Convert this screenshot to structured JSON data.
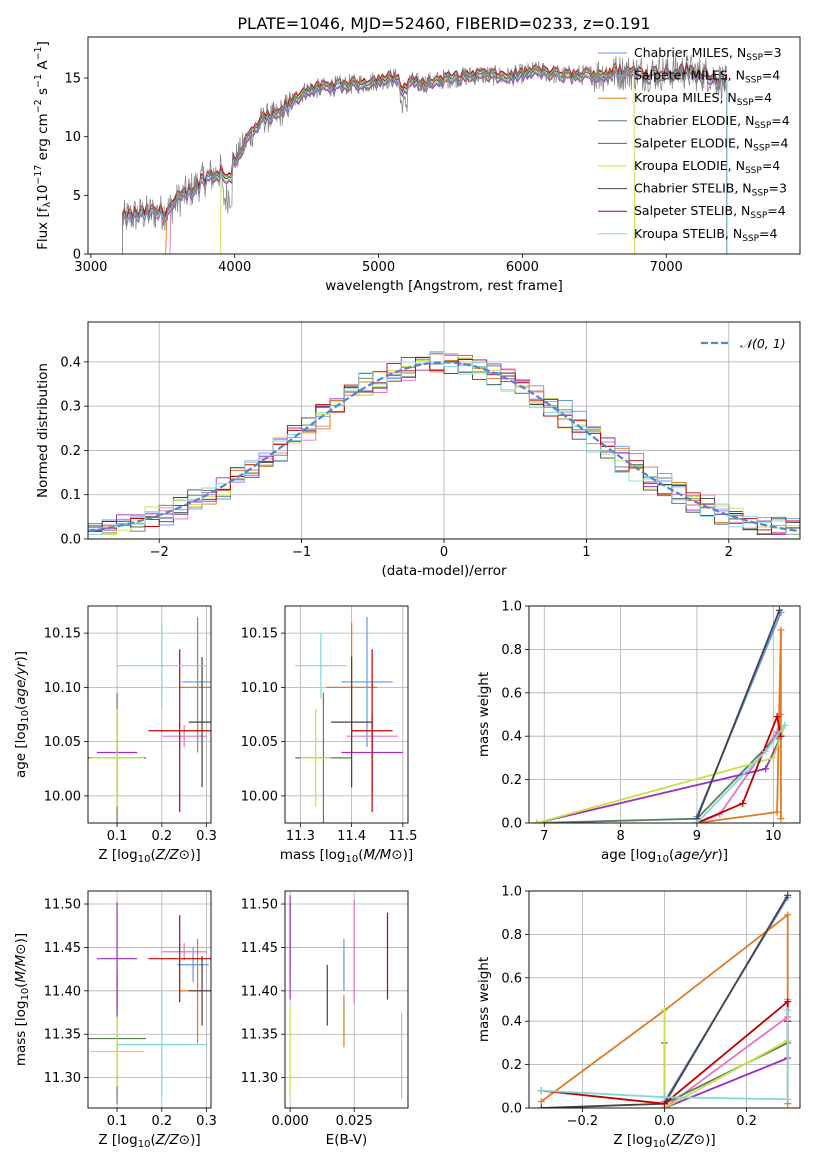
{
  "figure": {
    "title": "PLATE=1046, MJD=52460, FIBERID=0233, z=0.191"
  },
  "colors": {
    "Chabrier MILES": "#6495ed",
    "Salpeter MILES": "#e377c2",
    "Kroupa MILES": "#e07b1f",
    "Chabrier ELODIE": "#5a7d5a",
    "Salpeter ELODIE": "#9b30c0",
    "Kroupa ELODIE": "#c8e04a",
    "Chabrier STELIB": "#444444",
    "Salpeter STELIB": "#c00000",
    "Kroupa STELIB": "#7fd8df",
    "data": "#808080",
    "normal": "#4f86d0"
  },
  "legend1": [
    {
      "model": "Chabrier MILES",
      "n": "3"
    },
    {
      "model": "Salpeter MILES",
      "n": "4"
    },
    {
      "model": "Kroupa MILES",
      "n": "4"
    },
    {
      "model": "Chabrier ELODIE",
      "n": "4"
    },
    {
      "model": "Salpeter ELODIE",
      "n": "4"
    },
    {
      "model": "Kroupa ELODIE",
      "n": "4"
    },
    {
      "model": "Chabrier STELIB",
      "n": "3"
    },
    {
      "model": "Salpeter STELIB",
      "n": "4"
    },
    {
      "model": "Kroupa STELIB",
      "n": "4"
    }
  ],
  "chart_data": [
    {
      "id": "spectrum",
      "type": "line",
      "title": "PLATE=1046, MJD=52460, FIBERID=0233, z=0.191",
      "xlabel": "wavelength [Angstrom, rest frame]",
      "ylabel": "Flux [f_λ 10^-17 erg cm^-2 s^-1 A^-1]",
      "xlim": [
        2980,
        7930
      ],
      "ylim": [
        0,
        18.5
      ],
      "xticks": [
        3000,
        4000,
        5000,
        6000,
        7000
      ],
      "yticks": [
        0,
        5,
        10,
        15
      ],
      "legend_position": "right",
      "data_wavelength_range": [
        3220,
        7420
      ],
      "continuum": {
        "wavelength": [
          3220,
          3300,
          3400,
          3520,
          3600,
          3700,
          3800,
          3900,
          4000,
          4100,
          4200,
          4300,
          4400,
          4500,
          4700,
          4900,
          5100,
          5300,
          5500,
          5700,
          5900,
          6100,
          6300,
          6500,
          6700,
          6900,
          7100,
          7300,
          7420
        ],
        "flux": [
          3.0,
          3.3,
          3.5,
          3.6,
          4.5,
          5.5,
          6.5,
          7.0,
          8.0,
          10.0,
          11.5,
          11.8,
          13.0,
          14.0,
          14.3,
          14.6,
          15.0,
          14.5,
          15.0,
          15.3,
          15.1,
          15.6,
          15.2,
          15.3,
          15.5,
          15.4,
          15.6,
          15.3,
          14.5
        ]
      }
    },
    {
      "id": "residuals",
      "type": "histogram",
      "xlabel": "(data-model)/error",
      "ylabel": "Normed distribution",
      "xlim": [
        -2.5,
        2.5
      ],
      "ylim": [
        0,
        0.49
      ],
      "xticks": [
        -2,
        -1,
        0,
        1,
        2
      ],
      "yticks": [
        0.0,
        0.1,
        0.2,
        0.3,
        0.4
      ],
      "grid": true,
      "legend_position": "top-right",
      "reference_curve": {
        "label": "𝒩(0, 1)",
        "mean": 0,
        "sigma": 1
      },
      "bin_width": 0.1
    },
    {
      "id": "age_vs_Z",
      "type": "errorbar",
      "xlabel": "Z [log10(Z/Z⊙)]",
      "ylabel": "age  [log10(age/yr)]",
      "xlim": [
        0.035,
        0.31
      ],
      "ylim": [
        9.975,
        10.175
      ],
      "xticks": [
        0.1,
        0.2,
        0.3
      ],
      "yticks": [
        10.0,
        10.05,
        10.1,
        10.15
      ],
      "grid": true,
      "points": [
        {
          "model": "Chabrier MILES",
          "x": 0.28,
          "y": 10.105,
          "xerr": 0.035,
          "yerr": 0.06
        },
        {
          "model": "Salpeter MILES",
          "x": 0.25,
          "y": 10.055,
          "xerr": 0.05,
          "yerr": 0.01
        },
        {
          "model": "Kroupa MILES",
          "x": 0.28,
          "y": 10.1,
          "xerr": 0.04,
          "yerr": 0.06
        },
        {
          "model": "Chabrier ELODIE",
          "x": 0.1,
          "y": 10.035,
          "xerr": 0.065,
          "yerr": 0.06
        },
        {
          "model": "Salpeter ELODIE",
          "x": 0.1,
          "y": 10.04,
          "xerr": 0.045,
          "yerr": 0.035
        },
        {
          "model": "Kroupa ELODIE",
          "x": 0.1,
          "y": 10.035,
          "xerr": 0.06,
          "yerr": 0.045
        },
        {
          "model": "Chabrier STELIB",
          "x": 0.29,
          "y": 10.068,
          "xerr": 0.03,
          "yerr": 0.06
        },
        {
          "model": "Salpeter STELIB",
          "x": 0.24,
          "y": 10.06,
          "xerr": 0.07,
          "yerr": 0.075
        },
        {
          "model": "Kroupa STELIB",
          "x": 0.2,
          "y": 10.12,
          "xerr": 0.1,
          "yerr": 0.04
        }
      ]
    },
    {
      "id": "age_vs_mass",
      "type": "errorbar",
      "xlabel": "mass [log10(M/M⊙)]",
      "ylabel": "",
      "xlim": [
        11.27,
        11.51
      ],
      "ylim": [
        9.975,
        10.175
      ],
      "xticks": [
        11.3,
        11.4,
        11.5
      ],
      "yticks": [
        10.0,
        10.05,
        10.1,
        10.15
      ],
      "grid": true,
      "points": [
        {
          "model": "Chabrier MILES",
          "x": 11.43,
          "y": 10.105,
          "xerr": 0.05,
          "yerr": 0.06
        },
        {
          "model": "Salpeter MILES",
          "x": 11.44,
          "y": 10.055,
          "xerr": 0.05,
          "yerr": 0.01
        },
        {
          "model": "Kroupa MILES",
          "x": 11.4,
          "y": 10.1,
          "xerr": 0.05,
          "yerr": 0.06
        },
        {
          "model": "Chabrier ELODIE",
          "x": 11.345,
          "y": 10.035,
          "xerr": 0.055,
          "yerr": 0.06
        },
        {
          "model": "Salpeter ELODIE",
          "x": 11.44,
          "y": 10.04,
          "xerr": 0.06,
          "yerr": 0.035
        },
        {
          "model": "Kroupa ELODIE",
          "x": 11.33,
          "y": 10.035,
          "xerr": 0.03,
          "yerr": 0.045
        },
        {
          "model": "Chabrier STELIB",
          "x": 11.4,
          "y": 10.068,
          "xerr": 0.04,
          "yerr": 0.06
        },
        {
          "model": "Salpeter STELIB",
          "x": 11.44,
          "y": 10.06,
          "xerr": 0.04,
          "yerr": 0.075
        },
        {
          "model": "Kroupa STELIB",
          "x": 11.34,
          "y": 10.12,
          "xerr": 0.05,
          "yerr": 0.03
        }
      ]
    },
    {
      "id": "weight_vs_age",
      "type": "line",
      "xlabel": "age  [log10(age/yr)]",
      "ylabel": "mass weight",
      "xlim": [
        6.8,
        10.35
      ],
      "ylim": [
        0,
        1.0
      ],
      "xticks": [
        7,
        8,
        9,
        10
      ],
      "yticks": [
        0.0,
        0.2,
        0.4,
        0.6,
        0.8,
        1.0
      ],
      "grid": true,
      "series": [
        {
          "model": "Chabrier MILES",
          "x": [
            9.0,
            10.1
          ],
          "y": [
            0.03,
            0.97
          ]
        },
        {
          "model": "Salpeter MILES",
          "x": [
            9.0,
            9.3,
            10.05,
            10.1
          ],
          "y": [
            0.0,
            0.04,
            0.42,
            0.5
          ]
        },
        {
          "model": "Kroupa MILES",
          "x": [
            9.0,
            10.05,
            10.1,
            10.1
          ],
          "y": [
            0.0,
            0.05,
            0.89,
            0.02
          ]
        },
        {
          "model": "Chabrier ELODIE",
          "x": [
            6.9,
            9.0,
            10.05
          ],
          "y": [
            0.0,
            0.02,
            0.4
          ]
        },
        {
          "model": "Salpeter ELODIE",
          "x": [
            6.9,
            9.9,
            10.1
          ],
          "y": [
            0.0,
            0.25,
            0.4
          ]
        },
        {
          "model": "Kroupa ELODIE",
          "x": [
            6.9,
            10.0,
            10.15
          ],
          "y": [
            0.0,
            0.3,
            0.45
          ]
        },
        {
          "model": "Chabrier STELIB",
          "x": [
            9.0,
            10.08
          ],
          "y": [
            0.02,
            0.98
          ]
        },
        {
          "model": "Salpeter STELIB",
          "x": [
            9.0,
            9.6,
            10.05,
            10.1
          ],
          "y": [
            0.0,
            0.09,
            0.49,
            0.4
          ]
        },
        {
          "model": "Kroupa STELIB",
          "x": [
            9.0,
            9.9,
            10.15
          ],
          "y": [
            0.0,
            0.33,
            0.45
          ]
        }
      ]
    },
    {
      "id": "mass_vs_Z",
      "type": "errorbar",
      "xlabel": "Z [log10(Z/Z⊙)]",
      "ylabel": "mass [log10(M/M⊙)]",
      "xlim": [
        0.035,
        0.31
      ],
      "ylim": [
        11.265,
        11.515
      ],
      "xticks": [
        0.1,
        0.2,
        0.3
      ],
      "yticks": [
        11.3,
        11.35,
        11.4,
        11.45,
        11.5
      ],
      "grid": true,
      "points": [
        {
          "model": "Chabrier MILES",
          "x": 0.27,
          "y": 11.43,
          "xerr": 0.035,
          "yerr": 0.02
        },
        {
          "model": "Salpeter MILES",
          "x": 0.25,
          "y": 11.445,
          "xerr": 0.05,
          "yerr": 0.01
        },
        {
          "model": "Kroupa MILES",
          "x": 0.28,
          "y": 11.4,
          "xerr": 0.04,
          "yerr": 0.06
        },
        {
          "model": "Chabrier ELODIE",
          "x": 0.1,
          "y": 11.345,
          "xerr": 0.065,
          "yerr": 0.075
        },
        {
          "model": "Salpeter ELODIE",
          "x": 0.1,
          "y": 11.437,
          "xerr": 0.045,
          "yerr": 0.065
        },
        {
          "model": "Kroupa ELODIE",
          "x": 0.1,
          "y": 11.33,
          "xerr": 0.06,
          "yerr": 0.04
        },
        {
          "model": "Chabrier STELIB",
          "x": 0.29,
          "y": 11.4,
          "xerr": 0.03,
          "yerr": 0.04
        },
        {
          "model": "Salpeter STELIB",
          "x": 0.24,
          "y": 11.437,
          "xerr": 0.07,
          "yerr": 0.05
        },
        {
          "model": "Kroupa STELIB",
          "x": 0.2,
          "y": 11.338,
          "xerr": 0.1,
          "yerr": 0.06
        }
      ]
    },
    {
      "id": "mass_vs_EBV",
      "type": "errorbar",
      "xlabel": "E(B-V)",
      "ylabel": "",
      "xlim": [
        -0.002,
        0.046
      ],
      "ylim": [
        11.265,
        11.515
      ],
      "xticks": [
        0.0,
        0.025
      ],
      "yticks": [
        11.3,
        11.35,
        11.4,
        11.45,
        11.5
      ],
      "grid": true,
      "points": [
        {
          "model": "Chabrier MILES",
          "x": 0.021,
          "y": 11.43,
          "yerr": 0.03
        },
        {
          "model": "Salpeter MILES",
          "x": 0.025,
          "y": 11.445,
          "yerr": 0.06
        },
        {
          "model": "Kroupa MILES",
          "x": 0.021,
          "y": 11.365,
          "yerr": 0.03
        },
        {
          "model": "Chabrier ELODIE",
          "x": 0.0,
          "y": 11.46,
          "yerr": 0.04
        },
        {
          "model": "Salpeter ELODIE",
          "x": 0.0,
          "y": 11.45,
          "yerr": 0.06
        },
        {
          "model": "Kroupa ELODIE",
          "x": 0.0,
          "y": 11.33,
          "yerr": 0.05
        },
        {
          "model": "Chabrier STELIB",
          "x": 0.0145,
          "y": 11.395,
          "yerr": 0.035
        },
        {
          "model": "Salpeter STELIB",
          "x": 0.038,
          "y": 11.44,
          "yerr": 0.05
        },
        {
          "model": "Kroupa STELIB",
          "x": 0.0435,
          "y": 11.325,
          "yerr": 0.05
        }
      ]
    },
    {
      "id": "weight_vs_Z",
      "type": "line",
      "xlabel": "Z [log10(Z/Z⊙)]",
      "ylabel": "mass weight",
      "xlim": [
        -0.33,
        0.33
      ],
      "ylim": [
        0,
        1.0
      ],
      "xticks": [
        -0.2,
        0.0,
        0.2
      ],
      "yticks": [
        0.0,
        0.2,
        0.4,
        0.6,
        0.8,
        1.0
      ],
      "grid": true,
      "series": [
        {
          "model": "Chabrier MILES",
          "x": [
            0.0,
            0.3
          ],
          "y": [
            0.03,
            0.97
          ]
        },
        {
          "model": "Salpeter MILES",
          "x": [
            0.0,
            0.3,
            0.3
          ],
          "y": [
            0.0,
            0.42,
            0.5
          ]
        },
        {
          "model": "Kroupa MILES",
          "x": [
            -0.3,
            0.0,
            0.3,
            0.3
          ],
          "y": [
            0.03,
            0.45,
            0.89,
            0.02
          ]
        },
        {
          "model": "Chabrier ELODIE",
          "x": [
            0.0,
            0.0,
            0.3
          ],
          "y": [
            0.3,
            0.02,
            0.3
          ]
        },
        {
          "model": "Salpeter ELODIE",
          "x": [
            0.0,
            0.3,
            0.3
          ],
          "y": [
            0.0,
            0.23,
            0.4
          ]
        },
        {
          "model": "Kroupa ELODIE",
          "x": [
            0.0,
            0.0,
            0.3
          ],
          "y": [
            0.45,
            0.0,
            0.31
          ]
        },
        {
          "model": "Chabrier STELIB",
          "x": [
            -0.3,
            0.0,
            0.3
          ],
          "y": [
            0.0,
            0.02,
            0.98
          ]
        },
        {
          "model": "Salpeter STELIB",
          "x": [
            -0.3,
            0.0,
            0.3,
            0.3
          ],
          "y": [
            0.08,
            0.02,
            0.49,
            0.4
          ]
        },
        {
          "model": "Kroupa STELIB",
          "x": [
            -0.3,
            0.0,
            0.3,
            0.3
          ],
          "y": [
            0.08,
            0.05,
            0.04,
            0.45
          ]
        }
      ]
    }
  ]
}
